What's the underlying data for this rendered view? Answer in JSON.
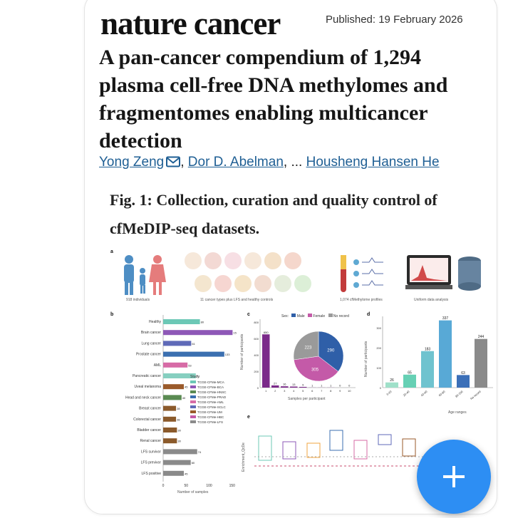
{
  "journal": {
    "masthead": "nature cancer",
    "published": "Published: 19 February 2026"
  },
  "article": {
    "title": "A pan-cancer compendium of 1,294 plasma cell-free DNA methylomes and fragmentomes enabling multicancer detection"
  },
  "authors": {
    "first": "Yong Zeng",
    "second": "Dor D. Abelman",
    "ellipsis": "...",
    "last": "Housheng Hansen He",
    "separator": ","
  },
  "figure": {
    "caption": "Fig. 1: Collection, curation and quality control of cfMeDIP-seq datasets.",
    "panel_a": {
      "letter": "a",
      "labels": [
        "918 individuals",
        "11 cancer types plus LFS and healthy controls",
        "1,074 cfMethylome profiles",
        "Uniform data analysis"
      ]
    },
    "panel_b": {
      "letter": "b",
      "xlabel": "Number of samples",
      "legend_title": "Study",
      "studies": [
        "TCGE-CFMe-MCA",
        "TCGE-CFMe-BCA",
        "TCGE-CFMe-HNSC",
        "TCGE-CFMe-PRAD",
        "TCGE-CFMe-AML",
        "TCGE-CFMe-SCLC",
        "TCGE-CFMe-UM",
        "TCGE-CFMe-HBC",
        "TCGE-CFMe-LFS"
      ]
    },
    "panel_c": {
      "letter": "c",
      "xlabel": "Samples per participant",
      "ylabel": "Number of participants",
      "legend_sex": "Sex:",
      "legend_items": [
        "Male",
        "Female",
        "No record"
      ]
    },
    "panel_d": {
      "letter": "d",
      "xlabel": "Age ranges",
      "ylabel": "Number of participants"
    },
    "panel_e": {
      "letter": "e",
      "ylabel": "Enrichment_QcDe"
    }
  },
  "fab": {
    "icon": "plus-icon"
  },
  "chart_data": [
    {
      "type": "bar",
      "title": "",
      "orientation": "horizontal",
      "xlabel": "Number of samples",
      "xlim": [
        0,
        155
      ],
      "categories": [
        "Healthy",
        "Brain cancer",
        "Lung cancer",
        "Prostate cancer",
        "AML",
        "Pancreatic cancer",
        "Uveal melanoma",
        "Head and neck cancer",
        "Breast cancer",
        "Colorectal cancer",
        "Bladder cancer",
        "Renal cancer",
        "LFS survivor",
        "LFS previvor",
        "LFS positive"
      ],
      "values": [
        80,
        151,
        61,
        133,
        53,
        71,
        45,
        40,
        28,
        28,
        30,
        30,
        74,
        60,
        45
      ],
      "colors": [
        "#6cc8b6",
        "#8e58b7",
        "#5f6ab8",
        "#3b6fb0",
        "#d76ba6",
        "#86cfc0",
        "#9a5a2a",
        "#5a8a52",
        "#8b5a2b",
        "#8b5a2b",
        "#8b5a2b",
        "#8b5a2b",
        "#8a8a8a",
        "#8a8a8a",
        "#8a8a8a"
      ]
    },
    {
      "type": "bar",
      "title": "",
      "xlabel": "Samples per participant",
      "ylabel": "Number of participants",
      "ylim": [
        0,
        800
      ],
      "categories": [
        "1",
        "2",
        "3",
        "4",
        "5",
        "6",
        "7",
        "8",
        "9",
        "10"
      ],
      "values": [
        650,
        27,
        16,
        13,
        9,
        1,
        1,
        1,
        0,
        0
      ]
    },
    {
      "type": "pie",
      "title": "",
      "categories": [
        "Male",
        "Female",
        "No record"
      ],
      "values": [
        290,
        305,
        223
      ],
      "colors": [
        "#2f5fa8",
        "#c45aa8",
        "#9a9a9a"
      ]
    },
    {
      "type": "bar",
      "title": "",
      "xlabel": "Age ranges",
      "ylabel": "Number of participants",
      "ylim": [
        0,
        350
      ],
      "categories": [
        "0-20",
        "20-40",
        "40-60",
        "60-80",
        "80-100",
        "No record"
      ],
      "values": [
        26,
        65,
        183,
        337,
        63,
        244
      ]
    }
  ]
}
